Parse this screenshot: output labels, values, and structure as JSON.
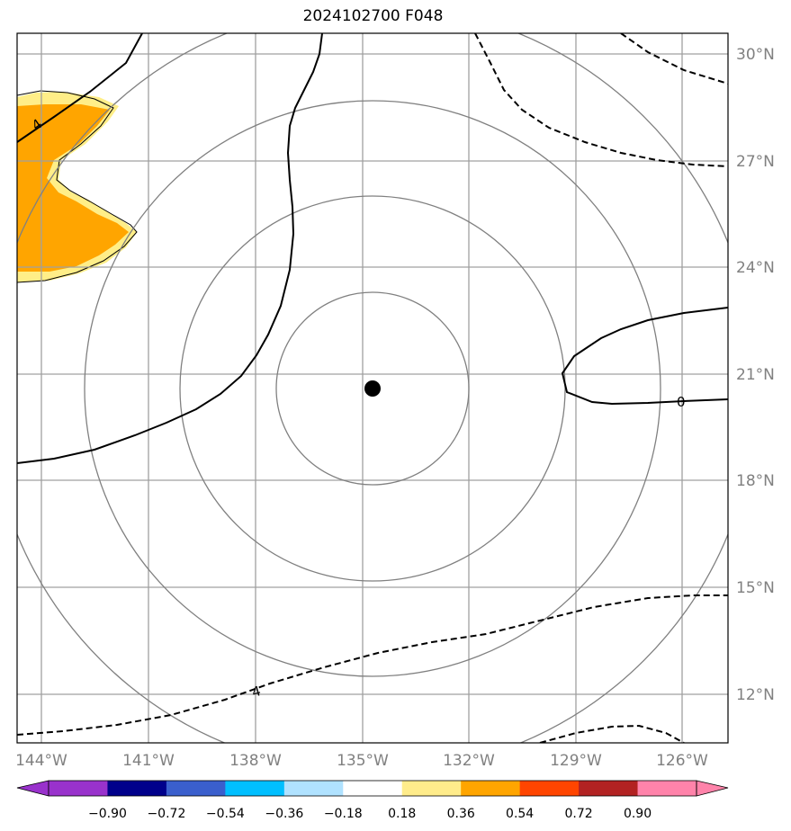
{
  "title": "2024102700 F048",
  "map": {
    "lon_ticks": [
      "144°W",
      "141°W",
      "138°W",
      "135°W",
      "132°W",
      "129°W",
      "126°W"
    ],
    "lat_ticks": [
      "30°N",
      "27°N",
      "24°N",
      "21°N",
      "18°N",
      "15°N",
      "12°N"
    ],
    "center": {
      "lon": -134.7,
      "lat": 20.6
    },
    "contour_labels": [
      "4",
      "0",
      "4"
    ],
    "colors": {
      "grid": "#a0a0a0",
      "range_rings": "#808080",
      "contour": "#000000",
      "shade_orange": "#ffa500",
      "shade_yellow": "#ffee88"
    }
  },
  "colorbar": {
    "labels": [
      "−0.90",
      "−0.72",
      "−0.54",
      "−0.36",
      "−0.18",
      "0.18",
      "0.36",
      "0.54",
      "0.72",
      "0.90"
    ],
    "colors": [
      "#9932cc",
      "#00008b",
      "#3a5fcd",
      "#00bfff",
      "#b0e2ff",
      "#ffffff",
      "#ffec8b",
      "#ffa500",
      "#ff4500",
      "#b22222",
      "#ff83aa"
    ]
  }
}
